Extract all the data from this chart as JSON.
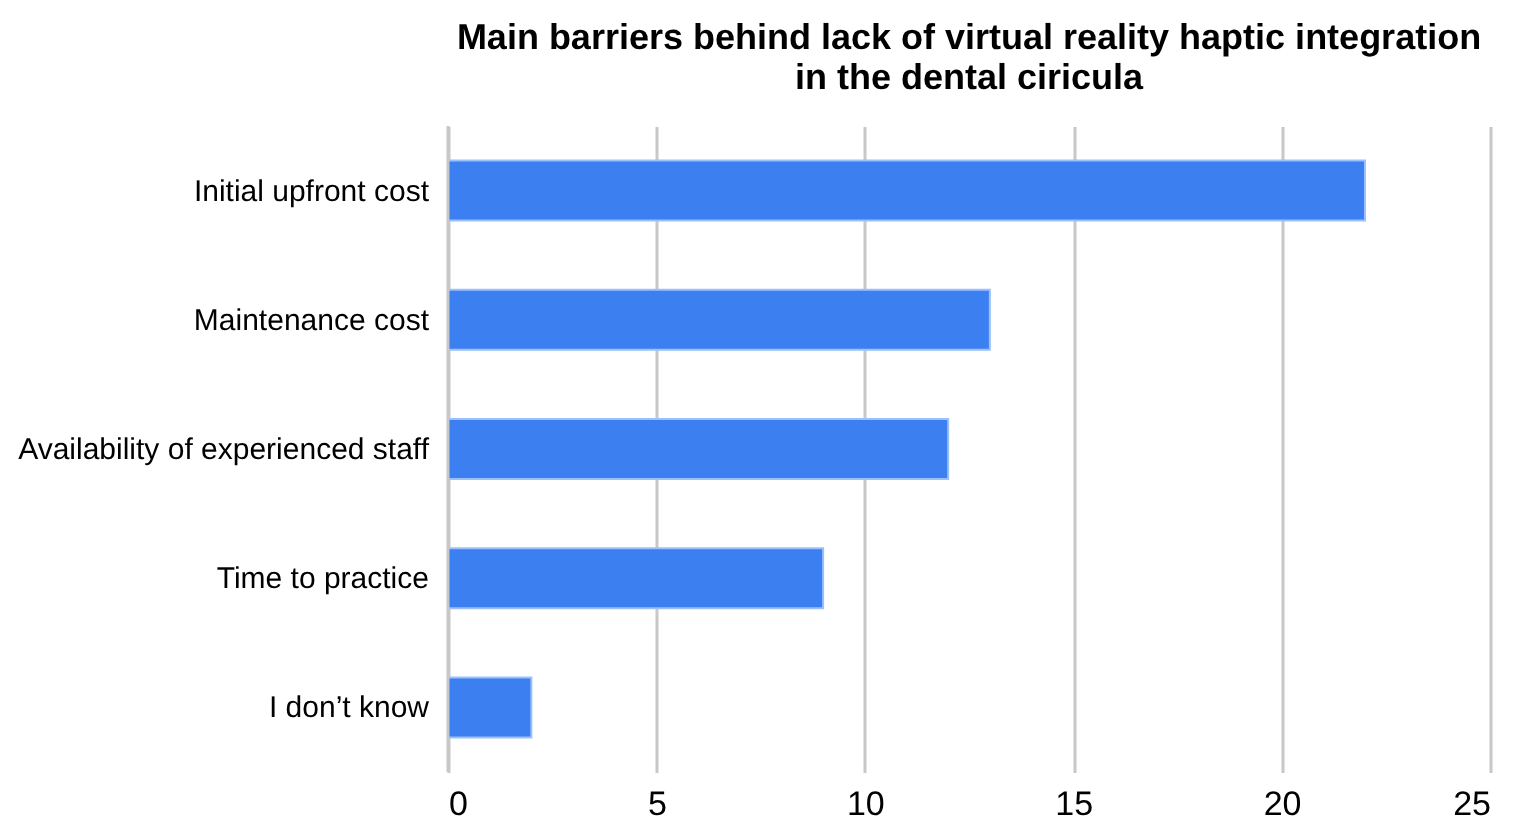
{
  "chart_data": {
    "type": "bar",
    "orientation": "horizontal",
    "title": "Main barriers behind lack of virtual reality haptic integration\nin the dental ciricula",
    "categories": [
      "Initial upfront cost",
      "Maintenance cost",
      "Availability of experienced staff",
      "Time to practice",
      "I don’t know"
    ],
    "values": [
      22,
      13,
      12,
      9,
      2
    ],
    "color": "#3b7ff0",
    "xlim": [
      0,
      25
    ],
    "xticks": [
      0,
      5,
      10,
      15,
      20,
      25
    ],
    "grid": "x"
  }
}
